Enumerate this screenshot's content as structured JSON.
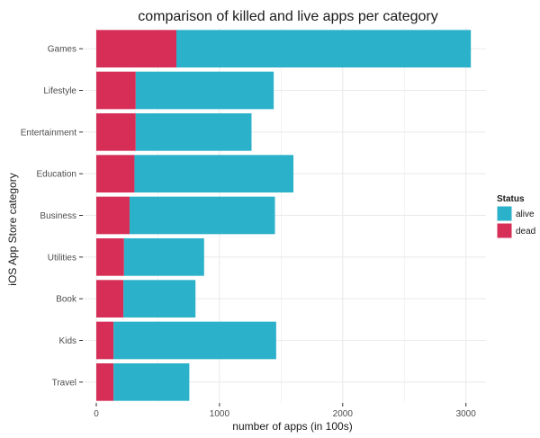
{
  "chart_data": {
    "type": "bar",
    "orientation": "horizontal",
    "stacked": true,
    "title": "comparison of killed and live apps per category",
    "xlabel": "number of apps (in 100s)",
    "ylabel": "iOS App Store category",
    "xlim": [
      0,
      3100
    ],
    "xticks": [
      0,
      1000,
      2000,
      3000
    ],
    "grid": true,
    "categories": [
      "Games",
      "Lifestyle",
      "Entertainment",
      "Education",
      "Business",
      "Utilities",
      "Book",
      "Kids",
      "Travel"
    ],
    "series": [
      {
        "name": "dead",
        "color": "#d62e57",
        "values": [
          650,
          320,
          320,
          310,
          270,
          225,
          220,
          140,
          140
        ]
      },
      {
        "name": "alive",
        "color": "#2bb1c9",
        "values": [
          2390,
          1120,
          940,
          1290,
          1180,
          650,
          585,
          1320,
          615
        ]
      }
    ],
    "legend": {
      "title": "Status",
      "placement": "right",
      "entries": [
        {
          "label": "alive",
          "color": "#2bb1c9"
        },
        {
          "label": "dead",
          "color": "#d62e57"
        }
      ]
    }
  },
  "colors": {
    "panel": "#ffffff",
    "grid": "#ebebeb"
  }
}
